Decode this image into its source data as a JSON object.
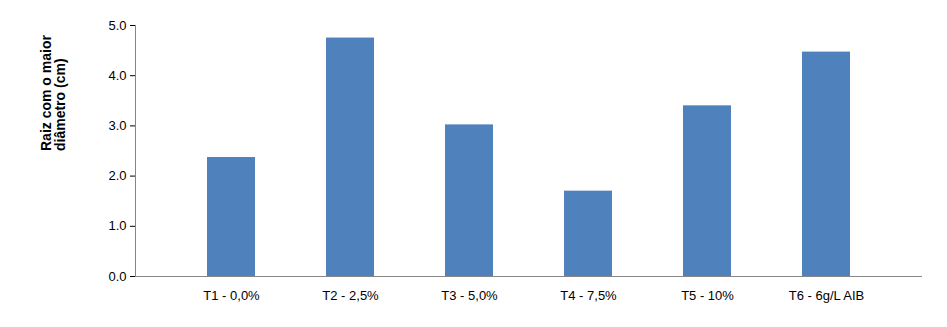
{
  "chart_data": {
    "type": "bar",
    "y_label": "Raiz com o maior diâmetro (cm)",
    "categories": [
      "T1 - 0,0%",
      "T2 - 2,5%",
      "T3 - 5,0%",
      "T4 - 7,5%",
      "T5 - 10%",
      "T6 - 6g/L AIB"
    ],
    "values": [
      2.37,
      4.75,
      3.02,
      1.7,
      3.4,
      4.47
    ],
    "color": "#4f81bd",
    "ylim": [
      0,
      5
    ],
    "yticks": [
      0,
      1,
      2,
      3,
      4,
      5
    ],
    "grid": false
  }
}
